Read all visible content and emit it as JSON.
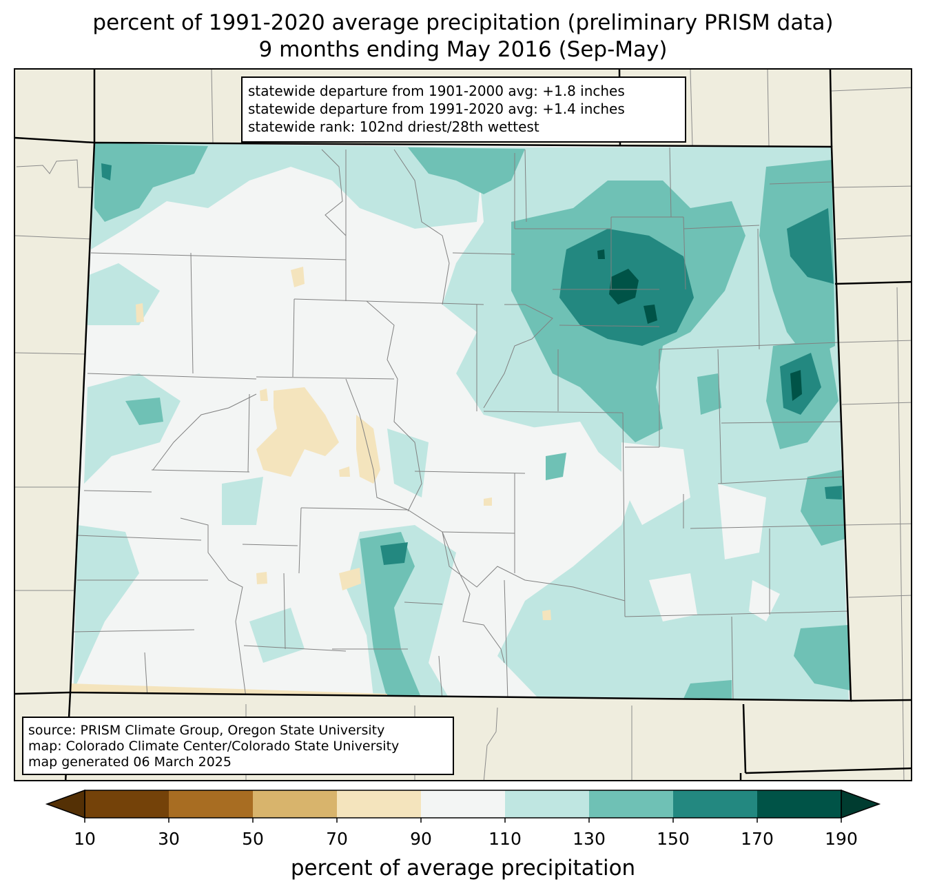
{
  "title": {
    "line1": "percent of 1991-2020 average precipitation (preliminary PRISM data)",
    "line2": "9 months ending May 2016 (Sep-May)"
  },
  "stats": {
    "line1": "statewide departure from 1901-2000 avg: +1.8 inches",
    "line2": "statewide departure from 1991-2020 avg: +1.4 inches",
    "line3": "statewide rank: 102nd driest/28th wettest"
  },
  "source": {
    "line1": "source: PRISM Climate Group, Oregon State University",
    "line2": "map: Colorado Climate Center/Colorado State University",
    "line3": "map generated 06 March 2025"
  },
  "colorbar": {
    "label": "percent of average precipitation",
    "ticks": [
      "10",
      "30",
      "50",
      "70",
      "90",
      "110",
      "130",
      "150",
      "170",
      "190"
    ],
    "bins": [
      {
        "range": "10-30",
        "color": "#744209"
      },
      {
        "range": "30-50",
        "color": "#a86d22"
      },
      {
        "range": "50-70",
        "color": "#d8b46c"
      },
      {
        "range": "70-90",
        "color": "#f4e4bd"
      },
      {
        "range": "90-110",
        "color": "#f3f5f4"
      },
      {
        "range": "110-130",
        "color": "#bfe6e1"
      },
      {
        "range": "130-150",
        "color": "#6fc1b5"
      },
      {
        "range": "150-170",
        "color": "#238880"
      },
      {
        "range": "170-190",
        "color": "#005347"
      }
    ],
    "under_color": "#543005",
    "over_color": "#003c30"
  },
  "colors": {
    "background_land": "#efedde",
    "border": "#000000",
    "county_line": "#808080"
  }
}
